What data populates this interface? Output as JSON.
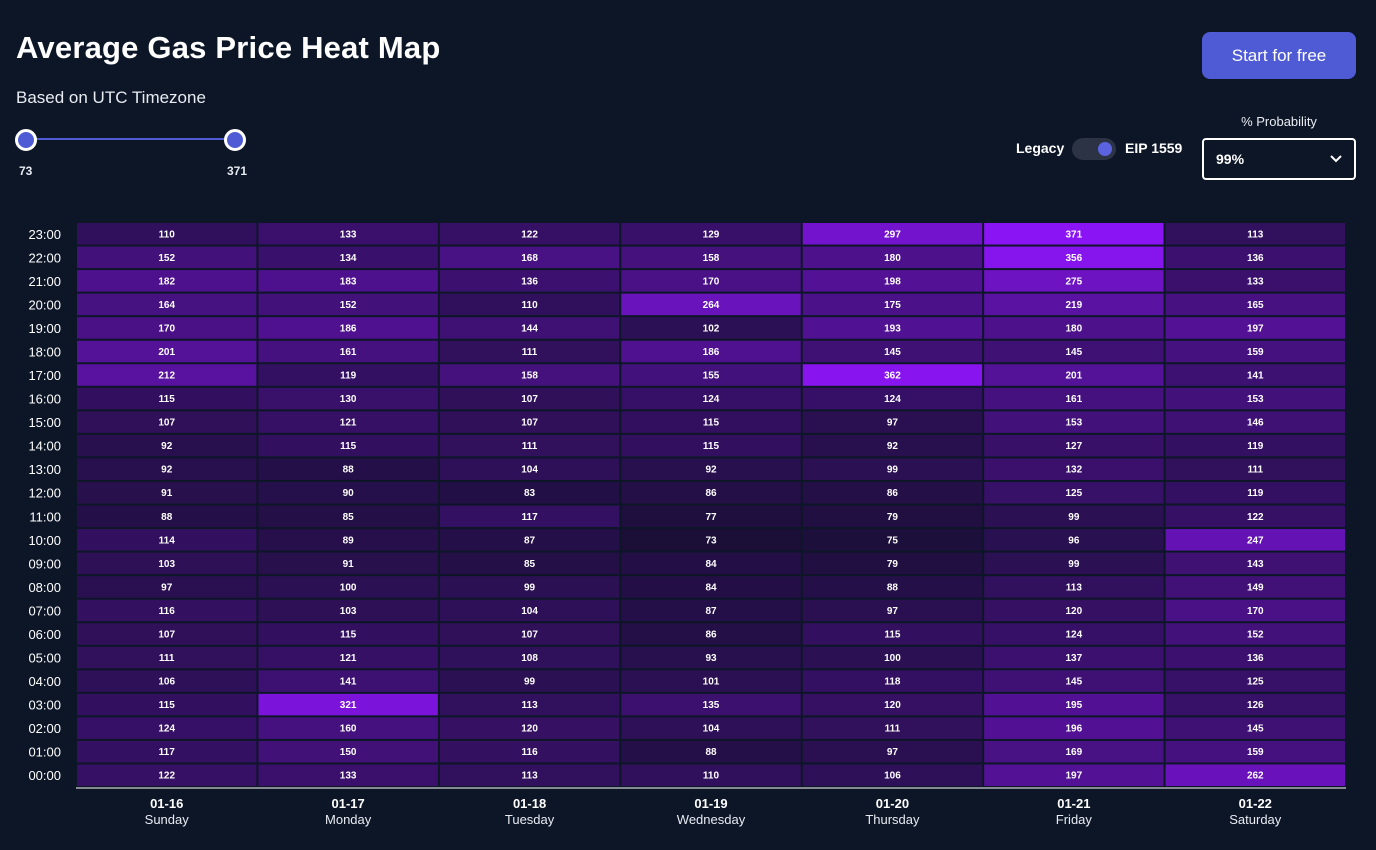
{
  "header": {
    "title": "Average Gas Price Heat Map",
    "subtitle": "Based on UTC Timezone",
    "cta_label": "Start for free"
  },
  "range_slider": {
    "min_label": "73",
    "max_label": "371",
    "min": 73,
    "max": 371
  },
  "fee_toggle": {
    "left_label": "Legacy",
    "right_label": "EIP 1559",
    "active": "EIP 1559"
  },
  "probability": {
    "label": "% Probability",
    "selected": "99%"
  },
  "colors": {
    "background": "#0d1627",
    "accent": "#4f5bd5",
    "cell_low": "#1b0f38",
    "cell_high": "#8b14f5"
  },
  "chart_data": {
    "type": "heatmap",
    "title": "Average Gas Price Heat Map",
    "x_dates": [
      "01-16",
      "01-17",
      "01-18",
      "01-19",
      "01-20",
      "01-21",
      "01-22"
    ],
    "x_days": [
      "Sunday",
      "Monday",
      "Tuesday",
      "Wednesday",
      "Thursday",
      "Friday",
      "Saturday"
    ],
    "y_hours": [
      "23:00",
      "22:00",
      "21:00",
      "20:00",
      "19:00",
      "18:00",
      "17:00",
      "16:00",
      "15:00",
      "14:00",
      "13:00",
      "12:00",
      "11:00",
      "10:00",
      "09:00",
      "08:00",
      "07:00",
      "06:00",
      "05:00",
      "04:00",
      "03:00",
      "02:00",
      "01:00",
      "00:00"
    ],
    "value_range": [
      73,
      371
    ],
    "values": [
      [
        110,
        133,
        122,
        129,
        297,
        371,
        113
      ],
      [
        152,
        134,
        168,
        158,
        180,
        356,
        136
      ],
      [
        182,
        183,
        136,
        170,
        198,
        275,
        133
      ],
      [
        164,
        152,
        110,
        264,
        175,
        219,
        165
      ],
      [
        170,
        186,
        144,
        102,
        193,
        180,
        197
      ],
      [
        201,
        161,
        111,
        186,
        145,
        145,
        159
      ],
      [
        212,
        119,
        158,
        155,
        362,
        201,
        141
      ],
      [
        115,
        130,
        107,
        124,
        124,
        161,
        153
      ],
      [
        107,
        121,
        107,
        115,
        97,
        153,
        146
      ],
      [
        92,
        115,
        111,
        115,
        92,
        127,
        119
      ],
      [
        92,
        88,
        104,
        92,
        99,
        132,
        111
      ],
      [
        91,
        90,
        83,
        86,
        86,
        125,
        119
      ],
      [
        88,
        85,
        117,
        77,
        79,
        99,
        122
      ],
      [
        114,
        89,
        87,
        73,
        75,
        96,
        247
      ],
      [
        103,
        91,
        85,
        84,
        79,
        99,
        143
      ],
      [
        97,
        100,
        99,
        84,
        88,
        113,
        149
      ],
      [
        116,
        103,
        104,
        87,
        97,
        120,
        170
      ],
      [
        107,
        115,
        107,
        86,
        115,
        124,
        152
      ],
      [
        111,
        121,
        108,
        93,
        100,
        137,
        136
      ],
      [
        106,
        141,
        99,
        101,
        118,
        145,
        125
      ],
      [
        115,
        321,
        113,
        135,
        120,
        195,
        126
      ],
      [
        124,
        160,
        120,
        104,
        111,
        196,
        145
      ],
      [
        117,
        150,
        116,
        88,
        97,
        169,
        159
      ],
      [
        122,
        133,
        113,
        110,
        106,
        197,
        262
      ]
    ]
  }
}
